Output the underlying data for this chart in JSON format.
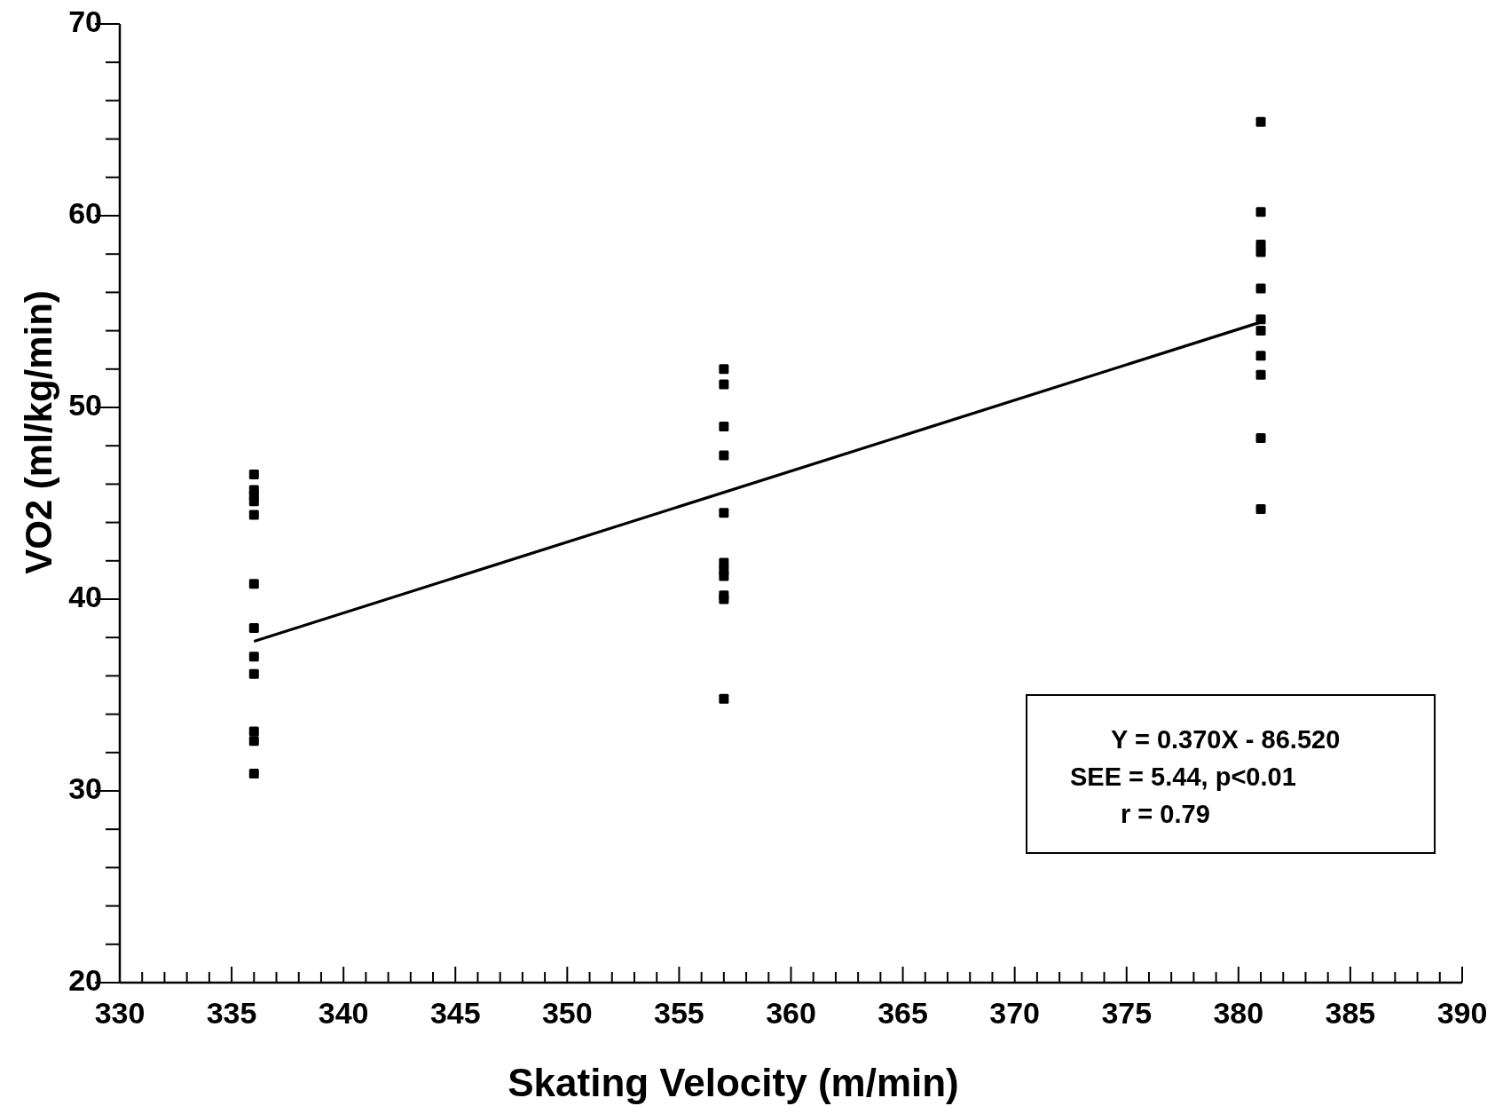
{
  "chart_data": {
    "type": "scatter",
    "xlabel": "Skating Velocity (m/min)",
    "ylabel": "VO2 (ml/kg/min)",
    "xlim": [
      330,
      390
    ],
    "ylim": [
      20,
      70
    ],
    "xticks": [
      330,
      {
        "value": 331,
        "label": null
      },
      {
        "value": 332,
        "label": null
      },
      {
        "value": 333,
        "label": null
      },
      {
        "value": 334,
        "label": null
      },
      335,
      {
        "value": 336,
        "label": null
      },
      {
        "value": 337,
        "label": null
      },
      {
        "value": 338,
        "label": null
      },
      {
        "value": 339,
        "label": null
      },
      340,
      {
        "value": 341,
        "label": null
      },
      {
        "value": 342,
        "label": null
      },
      {
        "value": 343,
        "label": null
      },
      {
        "value": 344,
        "label": null
      },
      345,
      {
        "value": 346,
        "label": null
      },
      {
        "value": 347,
        "label": null
      },
      {
        "value": 348,
        "label": null
      },
      {
        "value": 349,
        "label": null
      },
      350,
      {
        "value": 351,
        "label": null
      },
      {
        "value": 352,
        "label": null
      },
      {
        "value": 353,
        "label": null
      },
      {
        "value": 354,
        "label": null
      },
      355,
      {
        "value": 356,
        "label": null
      },
      {
        "value": 357,
        "label": null
      },
      {
        "value": 358,
        "label": null
      },
      {
        "value": 359,
        "label": null
      },
      360,
      {
        "value": 361,
        "label": null
      },
      {
        "value": 362,
        "label": null
      },
      {
        "value": 363,
        "label": null
      },
      {
        "value": 364,
        "label": null
      },
      365,
      {
        "value": 366,
        "label": null
      },
      {
        "value": 367,
        "label": null
      },
      {
        "value": 368,
        "label": null
      },
      {
        "value": 369,
        "label": null
      },
      370,
      {
        "value": 371,
        "label": null
      },
      {
        "value": 372,
        "label": null
      },
      {
        "value": 373,
        "label": null
      },
      {
        "value": 374,
        "label": null
      },
      375,
      {
        "value": 376,
        "label": null
      },
      {
        "value": 377,
        "label": null
      },
      {
        "value": 378,
        "label": null
      },
      {
        "value": 379,
        "label": null
      },
      380,
      {
        "value": 381,
        "label": null
      },
      {
        "value": 382,
        "label": null
      },
      {
        "value": 383,
        "label": null
      },
      {
        "value": 384,
        "label": null
      },
      385,
      {
        "value": 386,
        "label": null
      },
      {
        "value": 387,
        "label": null
      },
      {
        "value": 388,
        "label": null
      },
      {
        "value": 389,
        "label": null
      },
      390
    ],
    "yticks": [
      20,
      {
        "value": 22,
        "label": null
      },
      {
        "value": 24,
        "label": null
      },
      {
        "value": 26,
        "label": null
      },
      {
        "value": 28,
        "label": null
      },
      30,
      {
        "value": 32,
        "label": null
      },
      {
        "value": 34,
        "label": null
      },
      {
        "value": 36,
        "label": null
      },
      {
        "value": 38,
        "label": null
      },
      40,
      {
        "value": 42,
        "label": null
      },
      {
        "value": 44,
        "label": null
      },
      {
        "value": 46,
        "label": null
      },
      {
        "value": 48,
        "label": null
      },
      50,
      {
        "value": 52,
        "label": null
      },
      {
        "value": 54,
        "label": null
      },
      {
        "value": 56,
        "label": null
      },
      {
        "value": 58,
        "label": null
      },
      60,
      {
        "value": 62,
        "label": null
      },
      {
        "value": 64,
        "label": null
      },
      {
        "value": 66,
        "label": null
      },
      {
        "value": 68,
        "label": null
      },
      70
    ],
    "grid": false,
    "series": [
      {
        "marker": "square",
        "color": "#000000",
        "x": [
          336,
          336,
          336,
          336,
          336,
          336,
          336,
          336,
          336,
          336,
          336,
          336,
          357,
          357,
          357,
          357,
          357,
          357,
          357,
          357,
          357,
          357,
          357,
          381,
          381,
          381,
          381,
          381,
          381,
          381,
          381,
          381,
          381,
          381
        ],
        "values": [
          46.5,
          45.7,
          45.4,
          45.1,
          44.4,
          40.8,
          38.5,
          37.0,
          36.1,
          33.1,
          32.6,
          30.9,
          52.0,
          51.2,
          49.0,
          47.5,
          44.5,
          41.9,
          41.5,
          41.2,
          40.2,
          40.0,
          34.8,
          64.9,
          60.2,
          58.5,
          58.1,
          56.2,
          54.6,
          54.0,
          52.7,
          51.7,
          48.4,
          44.7
        ]
      },
      {
        "type": "line",
        "color": "#000000",
        "x": [
          336,
          381
        ],
        "values": [
          37.8,
          54.45
        ],
        "line_style": "solid"
      }
    ],
    "annotations": [
      "Y = 0.370X - 86.520",
      "SEE = 5.44,  p<0.01",
      "r = 0.79"
    ]
  }
}
